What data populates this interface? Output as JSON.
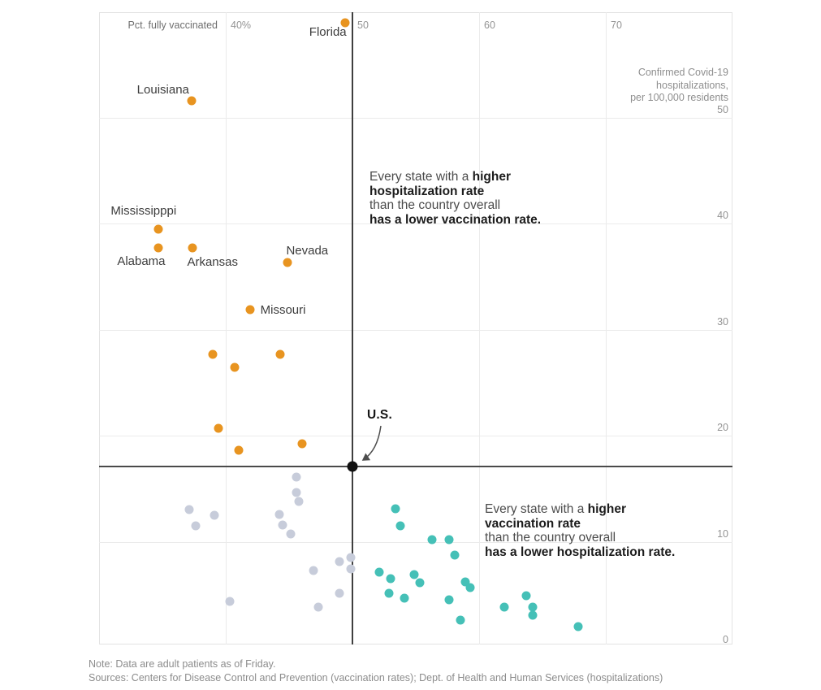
{
  "chart_data": {
    "type": "scatter",
    "x_axis": {
      "label": "Pct. fully vaccinated",
      "range": [
        30,
        80
      ],
      "ticks": [
        {
          "value": 40,
          "label": "40%"
        },
        {
          "value": 50,
          "label": "50"
        },
        {
          "value": 60,
          "label": "60"
        },
        {
          "value": 70,
          "label": "70"
        }
      ]
    },
    "y_axis": {
      "label": "Confirmed Covid-19\nhospitalizations,\nper 100,000 residents",
      "range": [
        0,
        60
      ],
      "ticks": [
        {
          "value": 0,
          "label": "0"
        },
        {
          "value": 10,
          "label": "10"
        },
        {
          "value": 20,
          "label": "20"
        },
        {
          "value": 30,
          "label": "30"
        },
        {
          "value": 40,
          "label": "40"
        },
        {
          "value": 50,
          "label": "50"
        }
      ]
    },
    "us_point": {
      "label": "U.S.",
      "x": 50.0,
      "y": 17.1
    },
    "reference_lines": {
      "vertical_x": 50.0,
      "horizontal_y": 17.1
    },
    "series": [
      {
        "name": "higher-hospitalization-lower-vaccination",
        "color": "#e89420",
        "points": [
          {
            "x": 49.4,
            "y": 58.9,
            "label": {
              "text": "Florida",
              "dx": 2,
              "dy": 11,
              "align": "end"
            }
          },
          {
            "x": 37.3,
            "y": 51.6,
            "label": {
              "text": "Louisiana",
              "dx": -3,
              "dy": -14,
              "align": "end"
            }
          },
          {
            "x": 34.7,
            "y": 39.5,
            "label": {
              "text": "Mississipppi",
              "dx": -59,
              "dy": -23,
              "align": "start"
            }
          },
          {
            "x": 34.7,
            "y": 37.7,
            "label": {
              "text": "Alabama",
              "dx": -51,
              "dy": 16,
              "align": "start"
            }
          },
          {
            "x": 37.4,
            "y": 37.7,
            "label": {
              "text": "Arkansas",
              "dx": -7,
              "dy": 17,
              "align": "start"
            }
          },
          {
            "x": 44.9,
            "y": 36.3,
            "label": {
              "text": "Nevada",
              "dx": -2,
              "dy": -15,
              "align": "start"
            }
          },
          {
            "x": 41.9,
            "y": 31.9,
            "label": {
              "text": "Missouri",
              "dx": 13,
              "dy": 0,
              "align": "start"
            }
          },
          {
            "x": 39.0,
            "y": 27.7
          },
          {
            "x": 40.7,
            "y": 26.4
          },
          {
            "x": 44.3,
            "y": 27.7
          },
          {
            "x": 39.4,
            "y": 20.7
          },
          {
            "x": 41.0,
            "y": 18.6
          },
          {
            "x": 46.0,
            "y": 19.2
          }
        ]
      },
      {
        "name": "near-us-average",
        "color": "#c7ccda",
        "points": [
          {
            "x": 37.1,
            "y": 13.0
          },
          {
            "x": 39.1,
            "y": 12.5
          },
          {
            "x": 37.6,
            "y": 11.5
          },
          {
            "x": 45.6,
            "y": 16.1
          },
          {
            "x": 45.6,
            "y": 14.6
          },
          {
            "x": 45.8,
            "y": 13.8
          },
          {
            "x": 44.2,
            "y": 12.6
          },
          {
            "x": 44.5,
            "y": 11.6
          },
          {
            "x": 45.1,
            "y": 10.7
          },
          {
            "x": 46.9,
            "y": 7.3
          },
          {
            "x": 49.0,
            "y": 8.1
          },
          {
            "x": 49.9,
            "y": 8.5
          },
          {
            "x": 49.9,
            "y": 7.4
          },
          {
            "x": 49.0,
            "y": 5.1
          },
          {
            "x": 40.3,
            "y": 4.4
          },
          {
            "x": 47.3,
            "y": 3.8
          }
        ]
      },
      {
        "name": "higher-vaccination-lower-hospitalization",
        "color": "#45c0b7",
        "points": [
          {
            "x": 53.4,
            "y": 13.1
          },
          {
            "x": 53.8,
            "y": 11.5
          },
          {
            "x": 56.3,
            "y": 10.2
          },
          {
            "x": 57.6,
            "y": 10.2
          },
          {
            "x": 58.1,
            "y": 8.7
          },
          {
            "x": 52.1,
            "y": 7.1
          },
          {
            "x": 53.0,
            "y": 6.5
          },
          {
            "x": 54.9,
            "y": 6.9
          },
          {
            "x": 55.3,
            "y": 6.1
          },
          {
            "x": 52.9,
            "y": 5.1
          },
          {
            "x": 54.1,
            "y": 4.7
          },
          {
            "x": 58.9,
            "y": 6.2
          },
          {
            "x": 59.3,
            "y": 5.7
          },
          {
            "x": 57.6,
            "y": 4.5
          },
          {
            "x": 58.5,
            "y": 2.6
          },
          {
            "x": 62.0,
            "y": 3.8
          },
          {
            "x": 63.7,
            "y": 4.9
          },
          {
            "x": 64.2,
            "y": 3.8
          },
          {
            "x": 64.2,
            "y": 3.1
          },
          {
            "x": 67.8,
            "y": 2.0
          }
        ]
      }
    ],
    "annotations": [
      {
        "name": "upper",
        "x": 455,
        "y": 209,
        "lines": [
          [
            {
              "t": "Every state with a ",
              "b": false
            },
            {
              "t": "higher",
              "b": true
            }
          ],
          [
            {
              "t": "hospitalization rate",
              "b": true
            }
          ],
          [
            {
              "t": "than the country overall",
              "b": false
            }
          ],
          [
            {
              "t": "has a lower vaccination rate.",
              "b": true
            }
          ]
        ]
      },
      {
        "name": "lower",
        "x": 597,
        "y": 618,
        "lines": [
          [
            {
              "t": "Every state with a ",
              "b": false
            },
            {
              "t": "higher",
              "b": true
            }
          ],
          [
            {
              "t": "vaccination rate",
              "b": true
            }
          ],
          [
            {
              "t": "than the country overall",
              "b": false
            }
          ],
          [
            {
              "t": "has a lower hospitalization rate.",
              "b": true
            }
          ]
        ]
      }
    ],
    "legend_position": "none",
    "grid": true
  },
  "footer": {
    "note": "Note: Data are adult patients as of Friday.",
    "sources": "Sources: Centers for Disease Control and Prevention (vaccination rates); Dept. of Health and Human Services (hospitalizations)"
  }
}
